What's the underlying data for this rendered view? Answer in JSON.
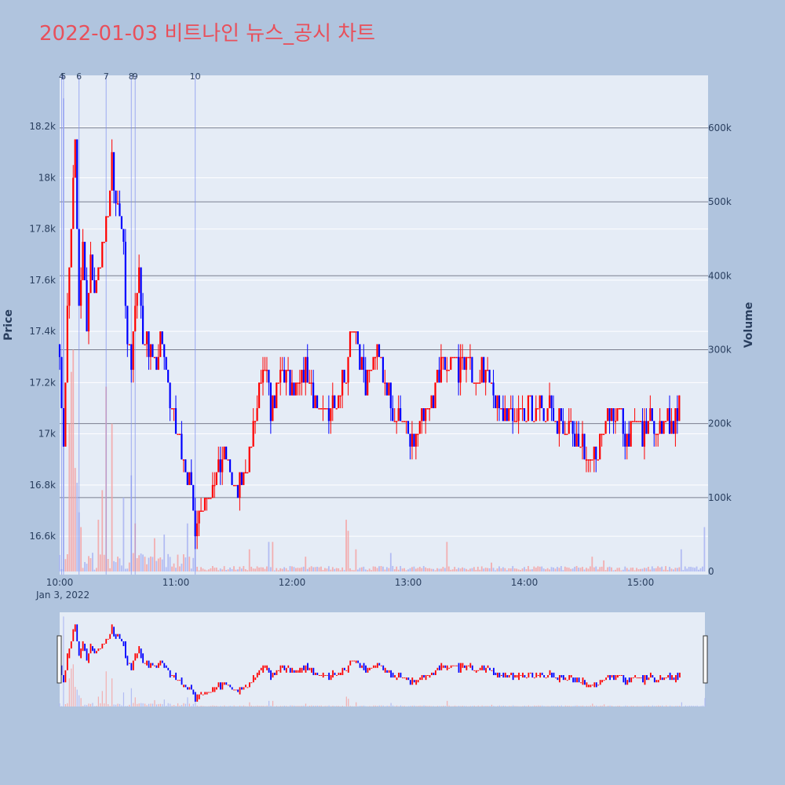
{
  "title": "2022-01-03 비트나인 뉴스_공시 차트",
  "colors": {
    "up": "#ff0000",
    "down": "#0000ff",
    "plot_bg": "#e5ecf6",
    "page_bg": "#b0c4de",
    "grid": "#ffffff",
    "volume_grid": "#7a7f8f",
    "title": "#e8505b",
    "text": "#2a3f5f"
  },
  "chart_data": {
    "type": "candlestick",
    "title": "2022-01-03 비트나인 뉴스_공시 차트",
    "xlabel": "",
    "ylabel": "Price",
    "y2label": "Volume",
    "x_range": [
      "2022-01-03 10:00",
      "2022-01-03 15:33"
    ],
    "price_range": [
      16450,
      18400
    ],
    "volume_range": [
      0,
      670000
    ],
    "price_ticks": [
      16600,
      16800,
      17000,
      17200,
      17400,
      17600,
      17800,
      18000,
      18200
    ],
    "price_tick_labels": [
      "16.6k",
      "16.8k",
      "17k",
      "17.2k",
      "17.4k",
      "17.6k",
      "17.8k",
      "18k",
      "18.2k"
    ],
    "volume_ticks": [
      0,
      100000,
      200000,
      300000,
      400000,
      500000,
      600000
    ],
    "volume_tick_labels": [
      "0",
      "100k",
      "200k",
      "300k",
      "400k",
      "500k",
      "600k"
    ],
    "time_ticks": [
      "10:00",
      "11:00",
      "12:00",
      "13:00",
      "14:00",
      "15:00"
    ],
    "date_label": "Jan 3, 2022",
    "grid": true,
    "rangeslider": true,
    "news_markers": [
      {
        "label": "4",
        "time": "10:01"
      },
      {
        "label": "5",
        "time": "10:02"
      },
      {
        "label": "6",
        "time": "10:10"
      },
      {
        "label": "7",
        "time": "10:24"
      },
      {
        "label": "8",
        "time": "10:37"
      },
      {
        "label": "9",
        "time": "10:39"
      },
      {
        "label": "10",
        "time": "11:10"
      }
    ],
    "price_path": [
      [
        "10:00",
        17350
      ],
      [
        "10:02",
        16950
      ],
      [
        "10:04",
        17450
      ],
      [
        "10:06",
        17800
      ],
      [
        "10:08",
        18100
      ],
      [
        "10:10",
        17500
      ],
      [
        "10:12",
        17750
      ],
      [
        "10:14",
        17450
      ],
      [
        "10:16",
        17650
      ],
      [
        "10:18",
        17550
      ],
      [
        "10:21",
        17700
      ],
      [
        "10:24",
        17800
      ],
      [
        "10:27",
        18050
      ],
      [
        "10:29",
        17950
      ],
      [
        "10:31",
        17850
      ],
      [
        "10:33",
        17700
      ],
      [
        "10:35",
        17400
      ],
      [
        "10:37",
        17300
      ],
      [
        "10:39",
        17500
      ],
      [
        "10:41",
        17600
      ],
      [
        "10:43",
        17400
      ],
      [
        "10:46",
        17350
      ],
      [
        "10:49",
        17250
      ],
      [
        "10:52",
        17350
      ],
      [
        "10:55",
        17250
      ],
      [
        "10:58",
        17100
      ],
      [
        "11:00",
        17000
      ],
      [
        "11:03",
        16950
      ],
      [
        "11:06",
        16850
      ],
      [
        "11:08",
        16750
      ],
      [
        "11:10",
        16650
      ],
      [
        "11:12",
        16700
      ],
      [
        "11:15",
        16750
      ],
      [
        "11:18",
        16800
      ],
      [
        "11:21",
        16850
      ],
      [
        "11:25",
        16900
      ],
      [
        "11:28",
        16850
      ],
      [
        "11:31",
        16750
      ],
      [
        "11:34",
        16800
      ],
      [
        "11:37",
        16900
      ],
      [
        "11:40",
        17000
      ],
      [
        "11:43",
        17150
      ],
      [
        "11:46",
        17250
      ],
      [
        "11:49",
        17100
      ],
      [
        "11:52",
        17150
      ],
      [
        "11:55",
        17250
      ],
      [
        "11:58",
        17200
      ],
      [
        "12:01",
        17150
      ],
      [
        "12:04",
        17200
      ],
      [
        "12:07",
        17250
      ],
      [
        "12:10",
        17200
      ],
      [
        "12:13",
        17100
      ],
      [
        "12:16",
        17050
      ],
      [
        "12:19",
        17100
      ],
      [
        "12:22",
        17150
      ],
      [
        "12:25",
        17200
      ],
      [
        "12:28",
        17250
      ],
      [
        "12:30",
        17400
      ],
      [
        "12:33",
        17350
      ],
      [
        "12:35",
        17300
      ],
      [
        "12:38",
        17200
      ],
      [
        "12:41",
        17250
      ],
      [
        "12:44",
        17350
      ],
      [
        "12:47",
        17200
      ],
      [
        "12:50",
        17150
      ],
      [
        "12:53",
        17050
      ],
      [
        "12:56",
        17100
      ],
      [
        "12:59",
        17000
      ],
      [
        "13:02",
        16950
      ],
      [
        "13:05",
        17000
      ],
      [
        "13:08",
        17050
      ],
      [
        "13:11",
        17100
      ],
      [
        "13:14",
        17150
      ],
      [
        "13:17",
        17300
      ],
      [
        "13:20",
        17250
      ],
      [
        "13:23",
        17300
      ],
      [
        "13:26",
        17250
      ],
      [
        "13:29",
        17300
      ],
      [
        "13:32",
        17250
      ],
      [
        "13:35",
        17200
      ],
      [
        "13:38",
        17250
      ],
      [
        "13:41",
        17200
      ],
      [
        "13:44",
        17150
      ],
      [
        "13:47",
        17100
      ],
      [
        "13:50",
        17100
      ],
      [
        "13:53",
        17050
      ],
      [
        "13:56",
        17100
      ],
      [
        "13:59",
        17050
      ],
      [
        "14:02",
        17100
      ],
      [
        "14:05",
        17050
      ],
      [
        "14:08",
        17150
      ],
      [
        "14:11",
        17100
      ],
      [
        "14:14",
        17100
      ],
      [
        "14:17",
        17050
      ],
      [
        "14:20",
        17050
      ],
      [
        "14:23",
        17050
      ],
      [
        "14:26",
        17000
      ],
      [
        "14:29",
        16950
      ],
      [
        "14:32",
        16950
      ],
      [
        "14:35",
        16850
      ],
      [
        "14:38",
        16950
      ],
      [
        "14:41",
        17000
      ],
      [
        "14:44",
        17100
      ],
      [
        "14:47",
        17050
      ],
      [
        "14:50",
        17050
      ],
      [
        "14:53",
        17000
      ],
      [
        "14:56",
        17000
      ],
      [
        "14:59",
        17050
      ],
      [
        "15:02",
        17000
      ],
      [
        "15:05",
        17050
      ],
      [
        "15:08",
        17000
      ],
      [
        "15:11",
        17050
      ],
      [
        "15:14",
        17050
      ],
      [
        "15:17",
        17050
      ],
      [
        "15:20",
        17100
      ]
    ],
    "volume_spikes": [
      [
        "10:02",
        640000
      ],
      [
        "10:05",
        200000
      ],
      [
        "10:06",
        270000
      ],
      [
        "10:07",
        300000
      ],
      [
        "10:08",
        140000
      ],
      [
        "10:09",
        120000
      ],
      [
        "10:10",
        80000
      ],
      [
        "10:11",
        60000
      ],
      [
        "10:20",
        70000
      ],
      [
        "10:22",
        110000
      ],
      [
        "10:24",
        250000
      ],
      [
        "10:27",
        200000
      ],
      [
        "10:33",
        100000
      ],
      [
        "10:37",
        130000
      ],
      [
        "10:39",
        65000
      ],
      [
        "10:49",
        45000
      ],
      [
        "10:54",
        50000
      ],
      [
        "11:06",
        65000
      ],
      [
        "11:10",
        70000
      ],
      [
        "11:38",
        30000
      ],
      [
        "11:48",
        40000
      ],
      [
        "11:50",
        40000
      ],
      [
        "12:07",
        20000
      ],
      [
        "12:28",
        70000
      ],
      [
        "12:29",
        55000
      ],
      [
        "12:33",
        30000
      ],
      [
        "12:51",
        25000
      ],
      [
        "13:20",
        40000
      ],
      [
        "13:43",
        12000
      ],
      [
        "14:35",
        20000
      ],
      [
        "14:41",
        15000
      ],
      [
        "15:21",
        30000
      ],
      [
        "15:33",
        60000
      ]
    ]
  }
}
